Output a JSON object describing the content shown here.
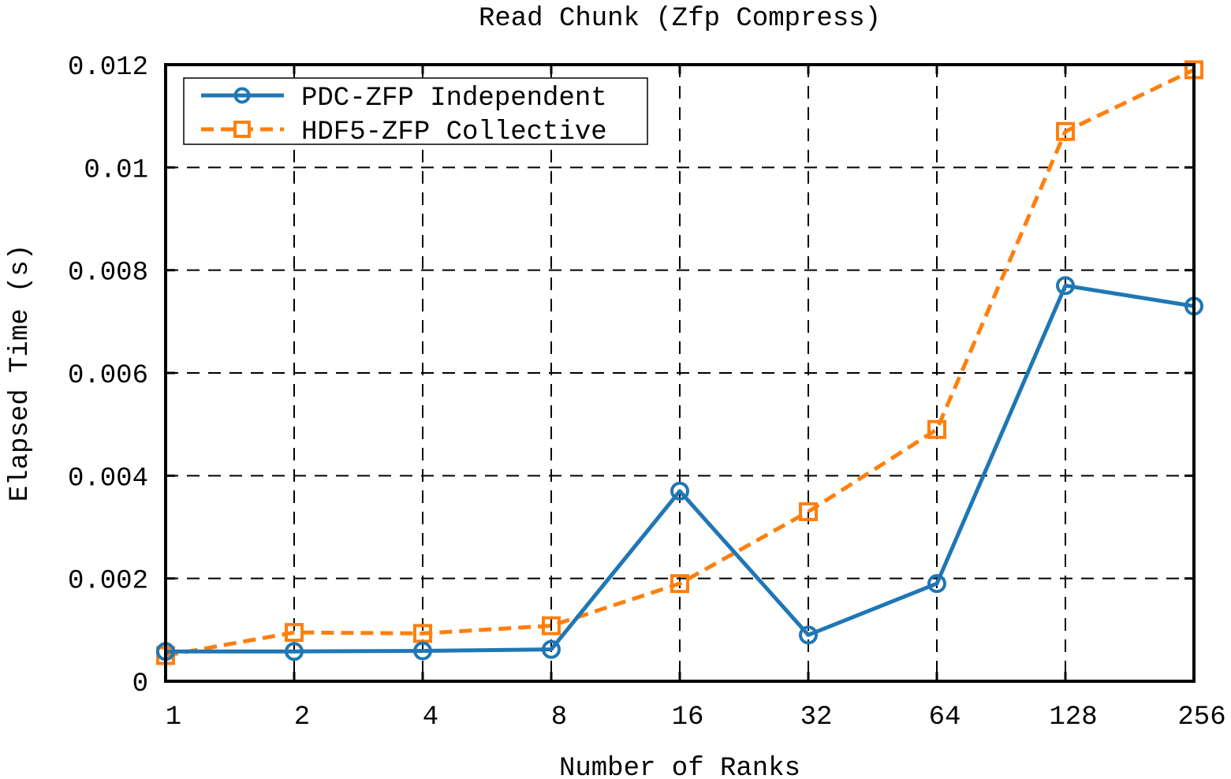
{
  "chart_data": {
    "type": "line",
    "title": "Read Chunk (Zfp Compress)",
    "xlabel": "Number of Ranks",
    "ylabel": "Elapsed Time (s)",
    "categories": [
      "1",
      "2",
      "4",
      "8",
      "16",
      "32",
      "64",
      "128",
      "256"
    ],
    "ylim": [
      0,
      0.012
    ],
    "yticks": [
      0,
      0.002,
      0.004,
      0.006,
      0.008,
      0.01,
      0.012
    ],
    "ytick_labels": [
      "0",
      "0.002",
      "0.004",
      "0.006",
      "0.008",
      "0.01",
      "0.012"
    ],
    "grid": true,
    "legend_position": "top-left",
    "series": [
      {
        "name": "PDC-ZFP Independent",
        "color": "#1f77b4",
        "marker": "circle",
        "line_style": "solid",
        "values": [
          0.00058,
          0.00058,
          0.00059,
          0.00062,
          0.0037,
          0.0009,
          0.0019,
          0.0077,
          0.0073
        ]
      },
      {
        "name": "HDF5-ZFP Collective",
        "color": "#ff7f0e",
        "marker": "square",
        "line_style": "dashed",
        "values": [
          0.0005,
          0.00095,
          0.00093,
          0.00108,
          0.0019,
          0.0033,
          0.0049,
          0.0107,
          0.0119
        ]
      }
    ]
  }
}
